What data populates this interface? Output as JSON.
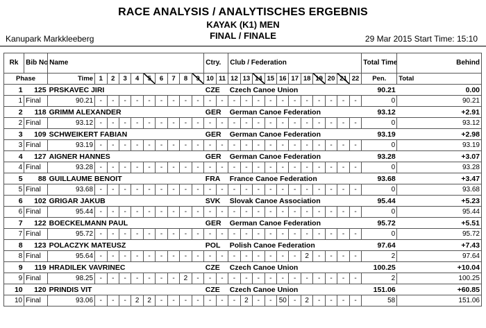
{
  "header": {
    "title": "RACE ANALYSIS / ANALYTISCHES ERGEBNIS",
    "event": "KAYAK (K1) MEN",
    "phase": "FINAL / FINALE",
    "venue": "Kanupark Markkleeberg",
    "date_info": "29 Mar 2015 Start Time: 15:10"
  },
  "columns": {
    "rk": "Rk",
    "bib": "Bib No.",
    "name": "Name",
    "ctry": "Ctry.",
    "club": "Club / Federation",
    "total_time": "Total Time",
    "behind": "Behind",
    "phase": "Phase",
    "time": "Time",
    "pen": "Pen.",
    "total": "Total",
    "gates": [
      "1",
      "2",
      "3",
      "4",
      "5",
      "6",
      "7",
      "8",
      "9",
      "10",
      "11",
      "12",
      "13",
      "14",
      "15",
      "16",
      "17",
      "18",
      "19",
      "20",
      "21",
      "22"
    ],
    "upstream_gates": [
      5,
      9,
      14,
      19,
      21
    ]
  },
  "results": [
    {
      "rank": "1",
      "bib": "125",
      "name": "PRSKAVEC JIRI",
      "ctry": "CZE",
      "club": "Czech Canoe Union",
      "total_time": "90.21",
      "behind": "0.00",
      "row_no": "1",
      "phase": "Final",
      "time": "90.21",
      "gates": [
        "-",
        "-",
        "-",
        "-",
        "-",
        "-",
        "-",
        "-",
        "-",
        "-",
        "-",
        "-",
        "-",
        "-",
        "-",
        "-",
        "-",
        "-",
        "-",
        "-",
        "-",
        "-"
      ],
      "pen": "0",
      "total": "90.21"
    },
    {
      "rank": "2",
      "bib": "118",
      "name": "GRIMM ALEXANDER",
      "ctry": "GER",
      "club": "German Canoe Federation",
      "total_time": "93.12",
      "behind": "+2.91",
      "row_no": "2",
      "phase": "Final",
      "time": "93.12",
      "gates": [
        "-",
        "-",
        "-",
        "-",
        "-",
        "-",
        "-",
        "-",
        "-",
        "-",
        "-",
        "-",
        "-",
        "-",
        "-",
        "-",
        "-",
        "-",
        "-",
        "-",
        "-",
        "-"
      ],
      "pen": "0",
      "total": "93.12"
    },
    {
      "rank": "3",
      "bib": "109",
      "name": "SCHWEIKERT FABIAN",
      "ctry": "GER",
      "club": "German Canoe Federation",
      "total_time": "93.19",
      "behind": "+2.98",
      "row_no": "3",
      "phase": "Final",
      "time": "93.19",
      "gates": [
        "-",
        "-",
        "-",
        "-",
        "-",
        "-",
        "-",
        "-",
        "-",
        "-",
        "-",
        "-",
        "-",
        "-",
        "-",
        "-",
        "-",
        "-",
        "-",
        "-",
        "-",
        "-"
      ],
      "pen": "0",
      "total": "93.19"
    },
    {
      "rank": "4",
      "bib": "127",
      "name": "AIGNER HANNES",
      "ctry": "GER",
      "club": "German Canoe Federation",
      "total_time": "93.28",
      "behind": "+3.07",
      "row_no": "4",
      "phase": "Final",
      "time": "93.28",
      "gates": [
        "-",
        "-",
        "-",
        "-",
        "-",
        "-",
        "-",
        "-",
        "-",
        "-",
        "-",
        "-",
        "-",
        "-",
        "-",
        "-",
        "-",
        "-",
        "-",
        "-",
        "-",
        "-"
      ],
      "pen": "0",
      "total": "93.28"
    },
    {
      "rank": "5",
      "bib": "88",
      "name": "GUILLAUME BENOIT",
      "ctry": "FRA",
      "club": "France Canoe Federation",
      "total_time": "93.68",
      "behind": "+3.47",
      "row_no": "5",
      "phase": "Final",
      "time": "93.68",
      "gates": [
        "-",
        "-",
        "-",
        "-",
        "-",
        "-",
        "-",
        "-",
        "-",
        "-",
        "-",
        "-",
        "-",
        "-",
        "-",
        "-",
        "-",
        "-",
        "-",
        "-",
        "-",
        "-"
      ],
      "pen": "0",
      "total": "93.68"
    },
    {
      "rank": "6",
      "bib": "102",
      "name": "GRIGAR JAKUB",
      "ctry": "SVK",
      "club": "Slovak Canoe Association",
      "total_time": "95.44",
      "behind": "+5.23",
      "row_no": "6",
      "phase": "Final",
      "time": "95.44",
      "gates": [
        "-",
        "-",
        "-",
        "-",
        "-",
        "-",
        "-",
        "-",
        "-",
        "-",
        "-",
        "-",
        "-",
        "-",
        "-",
        "-",
        "-",
        "-",
        "-",
        "-",
        "-",
        "-"
      ],
      "pen": "0",
      "total": "95.44"
    },
    {
      "rank": "7",
      "bib": "122",
      "name": "BOECKELMANN PAUL",
      "ctry": "GER",
      "club": "German Canoe Federation",
      "total_time": "95.72",
      "behind": "+5.51",
      "row_no": "7",
      "phase": "Final",
      "time": "95.72",
      "gates": [
        "-",
        "-",
        "-",
        "-",
        "-",
        "-",
        "-",
        "-",
        "-",
        "-",
        "-",
        "-",
        "-",
        "-",
        "-",
        "-",
        "-",
        "-",
        "-",
        "-",
        "-",
        "-"
      ],
      "pen": "0",
      "total": "95.72"
    },
    {
      "rank": "8",
      "bib": "123",
      "name": "POLACZYK MATEUSZ",
      "ctry": "POL",
      "club": "Polish Canoe Federation",
      "total_time": "97.64",
      "behind": "+7.43",
      "row_no": "8",
      "phase": "Final",
      "time": "95.64",
      "gates": [
        "-",
        "-",
        "-",
        "-",
        "-",
        "-",
        "-",
        "-",
        "-",
        "-",
        "-",
        "-",
        "-",
        "-",
        "-",
        "-",
        "-",
        "2",
        "-",
        "-",
        "-",
        "-"
      ],
      "pen": "2",
      "total": "97.64"
    },
    {
      "rank": "9",
      "bib": "119",
      "name": "HRADILEK VAVRINEC",
      "ctry": "CZE",
      "club": "Czech Canoe Union",
      "total_time": "100.25",
      "behind": "+10.04",
      "row_no": "9",
      "phase": "Final",
      "time": "98.25",
      "gates": [
        "-",
        "-",
        "-",
        "-",
        "-",
        "-",
        "-",
        "2",
        "-",
        "-",
        "-",
        "-",
        "-",
        "-",
        "-",
        "-",
        "-",
        "-",
        "-",
        "-",
        "-",
        "-"
      ],
      "pen": "2",
      "total": "100.25"
    },
    {
      "rank": "10",
      "bib": "120",
      "name": "PRINDIS VIT",
      "ctry": "CZE",
      "club": "Czech Canoe Union",
      "total_time": "151.06",
      "behind": "+60.85",
      "row_no": "10",
      "phase": "Final",
      "time": "93.06",
      "gates": [
        "-",
        "-",
        "-",
        "2",
        "2",
        "-",
        "-",
        "-",
        "-",
        "-",
        "-",
        "-",
        "2",
        "-",
        "-",
        "50",
        "-",
        "2",
        "-",
        "-",
        "-",
        "-"
      ],
      "pen": "58",
      "total": "151.06"
    }
  ]
}
